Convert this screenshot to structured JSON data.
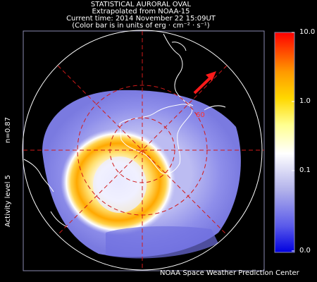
{
  "header": {
    "title": "STATISTICAL AURORAL OVAL",
    "source": "Extrapolated from NOAA-15",
    "time": "Current time: 2014 November 22 15:09UT",
    "units": "(Color bar is in units of erg · cm⁻² · s⁻¹)"
  },
  "side": {
    "n_value": "n=0.87",
    "activity": "Activity level 5"
  },
  "map": {
    "latitude_label": "60",
    "sun_arrow_color": "#ff1a1a",
    "grid_color": "#d11a1a"
  },
  "colorbar": {
    "ticks": [
      "10.0",
      "1.0",
      "0.1",
      "0.0"
    ],
    "colors": [
      "#ff0000",
      "#ff9a00",
      "#ffd800",
      "#ffff90",
      "#ffffff",
      "#b0b0ea",
      "#5a5aea",
      "#0000e0"
    ]
  },
  "credit": "NOAA Space Weather Prediction Center"
}
